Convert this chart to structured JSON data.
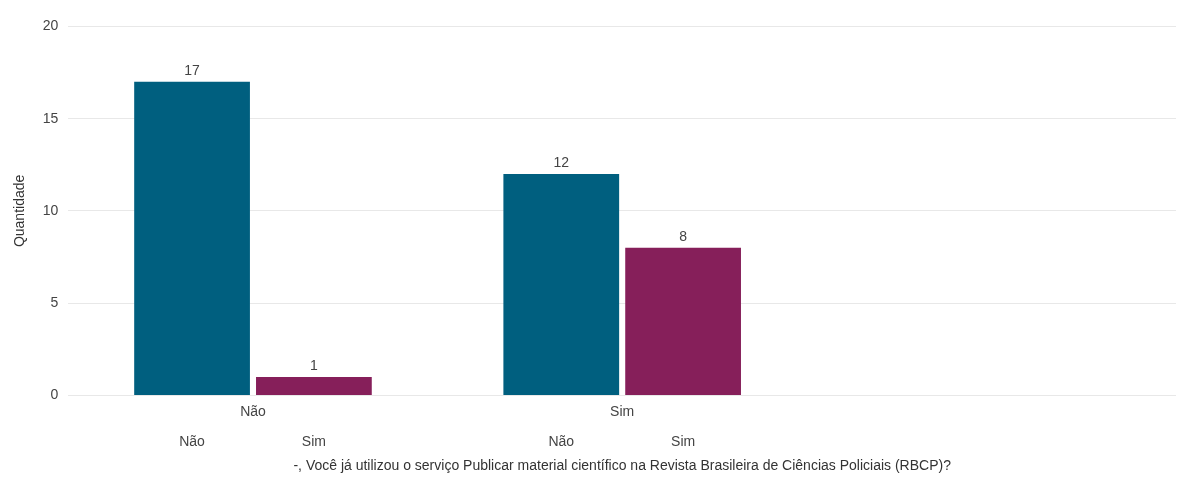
{
  "chart_data": {
    "type": "bar",
    "categories": [
      "Não",
      "Sim",
      null
    ],
    "xlabel": "-, Você já utilizou o serviço Publicar material científico na Revista Brasileira de Ciências Policiais (RBCP)?",
    "ylabel": "Quantidade",
    "ylim": [
      0,
      20
    ],
    "yticks": [
      0,
      5,
      10,
      15,
      20
    ],
    "grid": "y",
    "legend": false,
    "data_labels": true,
    "series": [
      {
        "name": "Não",
        "color": "#005f7f",
        "values": [
          17,
          12,
          null
        ]
      },
      {
        "name": "Sim",
        "color": "#861f5a",
        "values": [
          1,
          8,
          null
        ]
      }
    ]
  }
}
